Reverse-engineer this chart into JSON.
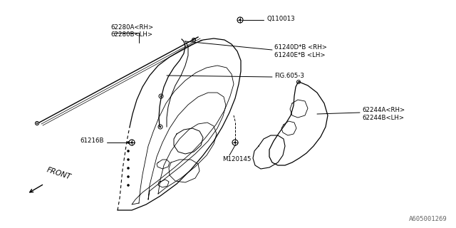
{
  "bg_color": "#ffffff",
  "line_color": "#000000",
  "text_color": "#000000",
  "fig_id": "A605001269",
  "labels": {
    "part1a": "62280A<RH>",
    "part1b": "62280B<LH>",
    "part2a": "61240D*B <RH>",
    "part2b": "61240E*B <LH>",
    "part3": "FIG.605-3",
    "part4a": "62244A<RH>",
    "part4b": "62244B<LH>",
    "part5": "61216B",
    "part6": "M120145",
    "part7": "Q110013",
    "front": "FRONT"
  }
}
